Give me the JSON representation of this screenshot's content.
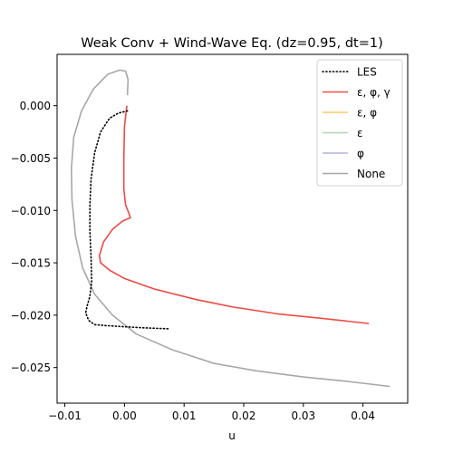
{
  "chart_data": {
    "type": "line",
    "title": "Weak Conv + Wind-Wave Eq. (dz=0.95, dt=1)",
    "xlabel": "u",
    "ylabel": "",
    "xlim": [
      -0.0113,
      0.0475
    ],
    "ylim": [
      -0.0284,
      0.0049
    ],
    "xticks": [
      -0.01,
      0.0,
      0.01,
      0.02,
      0.03,
      0.04
    ],
    "xtick_labels": [
      "−0.01",
      "0.00",
      "0.01",
      "0.02",
      "0.03",
      "0.04"
    ],
    "yticks": [
      0.0,
      -0.005,
      -0.01,
      -0.015,
      -0.02,
      -0.025
    ],
    "ytick_labels": [
      "0.000",
      "−0.005",
      "−0.010",
      "−0.015",
      "−0.020",
      "−0.025"
    ],
    "grid": false,
    "legend_position": "top-right",
    "series": [
      {
        "name": "LES",
        "color": "#000000",
        "style": "dotted",
        "x": [
          0.0005,
          -0.001,
          -0.0025,
          -0.004,
          -0.005,
          -0.0056,
          -0.0058,
          -0.0058,
          -0.0056,
          -0.0055,
          -0.0058,
          -0.0063,
          -0.0065,
          -0.006,
          -0.005,
          -0.003,
          0.0,
          0.003,
          0.0075
        ],
        "y": [
          -0.0005,
          -0.0007,
          -0.0012,
          -0.0025,
          -0.0045,
          -0.007,
          -0.0095,
          -0.012,
          -0.0145,
          -0.0168,
          -0.0182,
          -0.0192,
          -0.0198,
          -0.0205,
          -0.0209,
          -0.021,
          -0.0211,
          -0.0212,
          -0.0213
        ]
      },
      {
        "name": "ε, φ, γ",
        "color": "#ee4a45",
        "style": "solid",
        "x": [
          0.0004,
          0.0,
          -0.0001,
          -0.0001,
          0.0002,
          0.0007,
          0.001,
          -0.0003,
          -0.002,
          -0.0035,
          -0.0042,
          -0.004,
          -0.0025,
          0.0,
          0.005,
          0.012,
          0.018,
          0.026,
          0.033,
          0.041
        ],
        "y": [
          0.0,
          -0.002,
          -0.005,
          -0.008,
          -0.0095,
          -0.0102,
          -0.0107,
          -0.011,
          -0.0118,
          -0.013,
          -0.0143,
          -0.015,
          -0.0157,
          -0.0165,
          -0.0175,
          -0.0185,
          -0.0192,
          -0.0199,
          -0.0203,
          -0.0208
        ]
      },
      {
        "name": "ε, φ",
        "color": "#ffc769",
        "style": "solid",
        "x": [],
        "y": []
      },
      {
        "name": "ε",
        "color": "#b6d3b3",
        "style": "solid",
        "x": [],
        "y": []
      },
      {
        "name": "φ",
        "color": "#b3b3e0",
        "style": "solid",
        "x": [],
        "y": []
      },
      {
        "name": "None",
        "color": "#a8a8a8",
        "style": "solid",
        "x": [
          0.0005,
          0.0006,
          0.0002,
          -0.0008,
          -0.0028,
          -0.0052,
          -0.0072,
          -0.0085,
          -0.0089,
          -0.0088,
          -0.0082,
          -0.007,
          -0.005,
          -0.002,
          0.002,
          0.008,
          0.015,
          0.022,
          0.03,
          0.037,
          0.0445
        ],
        "y": [
          0.001,
          0.0025,
          0.0033,
          0.0034,
          0.003,
          0.0016,
          -0.0005,
          -0.003,
          -0.006,
          -0.009,
          -0.0125,
          -0.0155,
          -0.018,
          -0.02,
          -0.0218,
          -0.0233,
          -0.0246,
          -0.0253,
          -0.0259,
          -0.0263,
          -0.0268
        ]
      }
    ]
  }
}
